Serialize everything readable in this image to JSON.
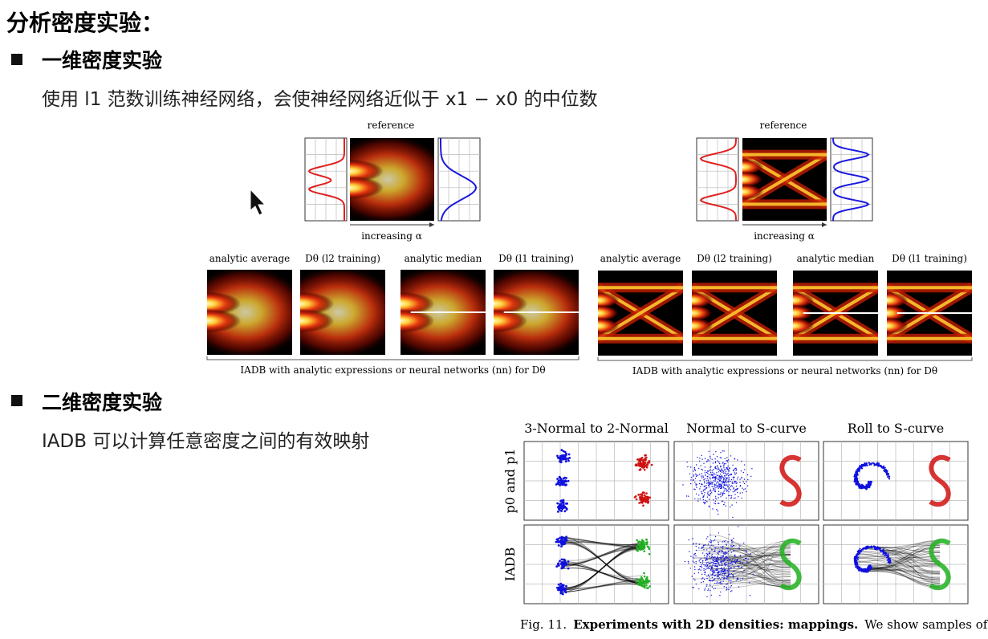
{
  "title": "分析密度实验：",
  "sections": [
    {
      "heading": "一维密度实验",
      "text": "使用 l1 范数训练神经网络，会使神经网络近似于 x1 − x0 的中位数"
    },
    {
      "heading": "二维密度实验",
      "text": "IADB 可以计算任意密度之间的有效映射"
    }
  ],
  "figure_1d": {
    "panels": [
      {
        "reference": "reference",
        "axis": "increasing α",
        "labels": [
          "analytic average",
          "Dθ (l2 training)",
          "analytic median",
          "Dθ (l1 training)"
        ],
        "caption": "IADB with analytic expressions or neural networks (nn) for Dθ"
      },
      {
        "reference": "reference",
        "axis": "increasing α",
        "labels": [
          "analytic average",
          "Dθ (l2 training)",
          "analytic median",
          "Dθ (l1 training)"
        ],
        "caption": "IADB with analytic expressions or neural networks (nn) for Dθ"
      }
    ]
  },
  "figure_2d": {
    "columns": [
      "3-Normal to 2-Normal",
      "Normal to S-curve",
      "Roll to S-curve"
    ],
    "rows": [
      "p0 and p1",
      "IADB"
    ],
    "caption": {
      "number": "Fig. 11.",
      "title": "Experiments with 2D densities: mappings.",
      "text": "We show samples of"
    }
  }
}
